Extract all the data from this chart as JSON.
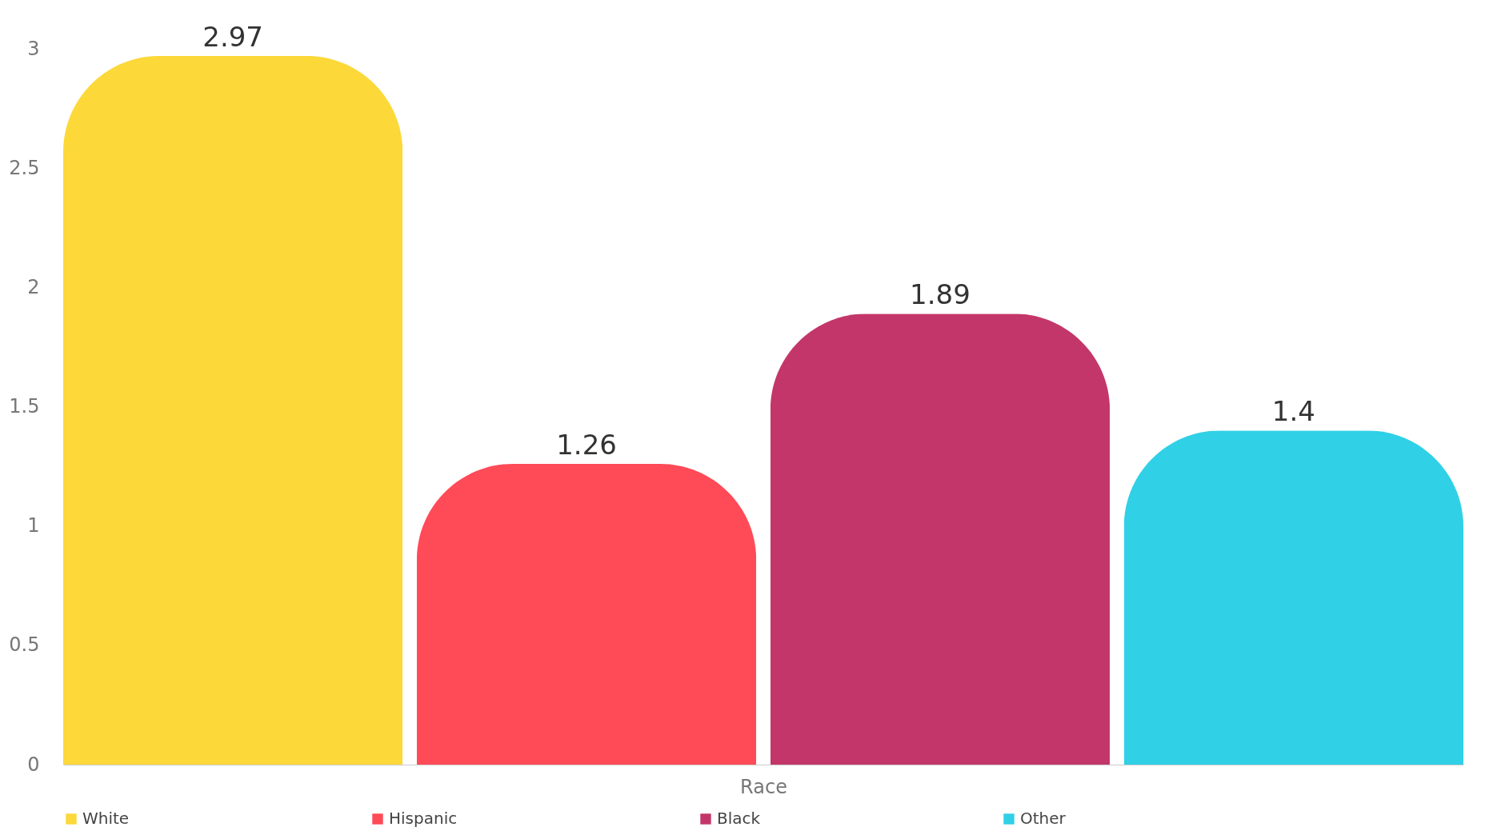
{
  "chart_data": {
    "type": "bar",
    "xlabel": "Race",
    "categories": [
      null
    ],
    "series": [
      {
        "name": "White",
        "color": "#fcd116",
        "values": [
          2.97
        ]
      },
      {
        "name": "Hispanic",
        "color": "#ff2a3a",
        "values": [
          1.26
        ]
      },
      {
        "name": "Black",
        "color": "#b8134f",
        "values": [
          1.89
        ]
      },
      {
        "name": "Other",
        "color": "#0cc8e2",
        "values": [
          1.4
        ]
      }
    ],
    "ylim": [
      0,
      3
    ],
    "yticks": [
      0,
      0.5,
      1,
      1.5,
      2,
      2.5,
      3
    ],
    "grid": false,
    "legend": "bottom",
    "data_labels": true
  }
}
